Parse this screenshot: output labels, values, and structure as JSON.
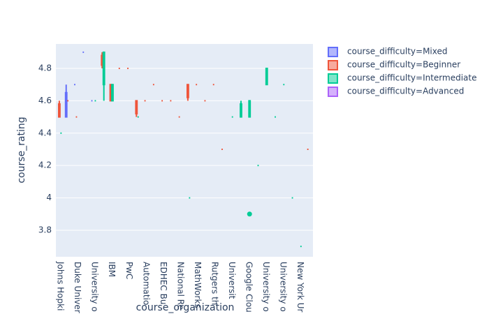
{
  "chart_data": {
    "type": "box",
    "x_label": "course_organization",
    "y_label": "course_rating",
    "categories": [
      "Johns Hopki",
      null,
      "Duke Univer",
      null,
      "University o",
      null,
      "IBM",
      null,
      "PwC",
      null,
      "Automatio",
      null,
      "EDHEC Bu",
      null,
      "National Re",
      null,
      "MathWorks",
      null,
      "Rutgers th",
      null,
      "Universit",
      null,
      "Google Clou",
      null,
      "University o",
      null,
      "University o",
      null,
      "New York Ur",
      null
    ],
    "ylim": [
      3.636,
      4.951
    ],
    "yticks": [
      3.8,
      4,
      4.2,
      4.4,
      4.6,
      4.8
    ],
    "grid": true,
    "legend_position": "right",
    "series": [
      {
        "name": "course_difficulty=Mixed",
        "color": "#636efa",
        "boxes": [
          {
            "x": 1,
            "values": [
              4.5,
              4.5,
              4.6,
              4.65,
              4.7
            ]
          },
          {
            "x": 2,
            "values": [
              4.7
            ]
          },
          {
            "x": 3,
            "values": [
              4.9
            ]
          },
          {
            "x": 4,
            "values": [
              4.6
            ]
          }
        ]
      },
      {
        "name": "course_difficulty=Beginner",
        "color": "#EF553B",
        "boxes": [
          {
            "x": 0,
            "values": [
              4.5,
              4.5,
              4.55,
              4.58,
              4.6
            ]
          },
          {
            "x": 1,
            "values": [
              4.6
            ]
          },
          {
            "x": 2,
            "values": [
              4.5
            ]
          },
          {
            "x": 5,
            "values": [
              4.8,
              4.82,
              4.85,
              4.88,
              4.9
            ]
          },
          {
            "x": 6,
            "values": [
              4.6,
              4.6,
              4.65,
              4.7,
              4.7
            ]
          },
          {
            "x": 7,
            "values": [
              4.8
            ]
          },
          {
            "x": 8,
            "values": [
              4.8
            ]
          },
          {
            "x": 9,
            "values": [
              4.5,
              4.52,
              4.55,
              4.6,
              4.6
            ]
          },
          {
            "x": 10,
            "values": [
              4.6
            ]
          },
          {
            "x": 11,
            "values": [
              4.7
            ]
          },
          {
            "x": 12,
            "values": [
              4.6
            ]
          },
          {
            "x": 13,
            "values": [
              4.6
            ]
          },
          {
            "x": 14,
            "values": [
              4.5
            ]
          },
          {
            "x": 15,
            "values": [
              4.6,
              4.62,
              4.65,
              4.7,
              4.7
            ]
          },
          {
            "x": 16,
            "values": [
              4.7
            ]
          },
          {
            "x": 17,
            "values": [
              4.6
            ]
          },
          {
            "x": 18,
            "values": [
              4.7
            ]
          },
          {
            "x": 19,
            "values": [
              4.3
            ]
          },
          {
            "x": 29,
            "values": [
              4.3
            ]
          }
        ]
      },
      {
        "name": "course_difficulty=Intermediate",
        "color": "#00cc96",
        "boxes": [
          {
            "x": 0,
            "values": [
              4.4
            ]
          },
          {
            "x": 4,
            "values": [
              4.6
            ]
          },
          {
            "x": 5,
            "values": [
              4.6,
              4.7,
              4.8,
              4.9,
              4.9
            ]
          },
          {
            "x": 6,
            "values": [
              4.6,
              4.6,
              4.65,
              4.7,
              4.7
            ]
          },
          {
            "x": 9,
            "values": [
              4.5
            ]
          },
          {
            "x": 15,
            "values": [
              4
            ]
          },
          {
            "x": 20,
            "values": [
              4.5
            ]
          },
          {
            "x": 21,
            "values": [
              4.5,
              4.5,
              4.55,
              4.58,
              4.6
            ]
          },
          {
            "x": 22,
            "values": [
              4.5,
              4.5,
              4.55,
              4.6,
              4.6
            ],
            "outliers": [
              3.9
            ]
          },
          {
            "x": 23,
            "values": [
              4.2
            ]
          },
          {
            "x": 24,
            "values": [
              4.7,
              4.7,
              4.75,
              4.8,
              4.8
            ]
          },
          {
            "x": 25,
            "values": [
              4.5
            ]
          },
          {
            "x": 26,
            "values": [
              4.7
            ]
          },
          {
            "x": 27,
            "values": [
              4
            ]
          },
          {
            "x": 28,
            "values": [
              3.7
            ]
          }
        ]
      },
      {
        "name": "course_difficulty=Advanced",
        "color": "#ab63fa",
        "boxes": []
      }
    ]
  }
}
